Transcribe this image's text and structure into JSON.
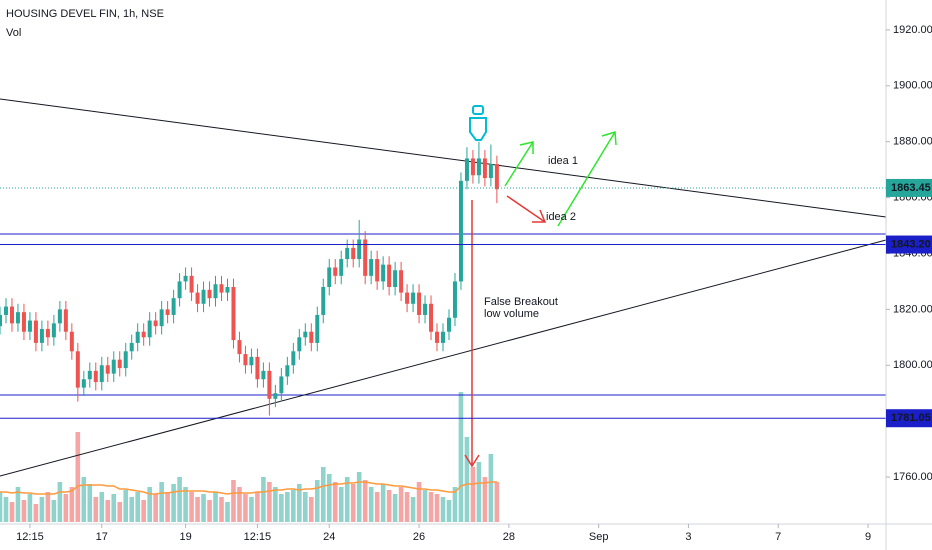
{
  "chart_data": {
    "type": "candlestick",
    "title": "HOUSING DEVEL FIN, 1h, NSE",
    "subtitle": "Vol",
    "annotations": [
      "idea 1",
      "idea 2",
      "False Breakout",
      "low volume"
    ],
    "xlim": [
      0,
      148
    ],
    "xticks": [
      {
        "value": 5,
        "label": "12:15"
      },
      {
        "value": 17,
        "label": "17"
      },
      {
        "value": 31,
        "label": "19"
      },
      {
        "value": 43,
        "label": "12:15"
      },
      {
        "value": 55,
        "label": "24"
      },
      {
        "value": 70,
        "label": "26"
      },
      {
        "value": 85,
        "label": "28"
      },
      {
        "value": 100,
        "label": "Sep"
      },
      {
        "value": 115,
        "label": "3"
      },
      {
        "value": 130,
        "label": "7"
      },
      {
        "value": 145,
        "label": "9"
      }
    ],
    "ylim": [
      1743.2,
      1930.7
    ],
    "yticks": [
      {
        "value": 1760,
        "label": "1760.00"
      },
      {
        "value": 1800,
        "label": "1800.00"
      },
      {
        "value": 1820,
        "label": "1820.00"
      },
      {
        "value": 1840,
        "label": "1840.00"
      },
      {
        "value": 1860,
        "label": "1860.00"
      },
      {
        "value": 1880,
        "label": "1880.00"
      },
      {
        "value": 1900,
        "label": "1900.00"
      },
      {
        "value": 1920,
        "label": "1920.00"
      }
    ],
    "up_color": "#26a69a",
    "down_color": "#ef5350",
    "vol_up_color": "#8fd3cc",
    "vol_down_color": "#f5a6a4",
    "ma_color": "#ff9a3c",
    "x": [
      0,
      1,
      2,
      3,
      4,
      5,
      6,
      7,
      8,
      9,
      10,
      11,
      12,
      13,
      14,
      15,
      16,
      17,
      18,
      19,
      20,
      21,
      22,
      23,
      24,
      25,
      26,
      27,
      28,
      29,
      30,
      31,
      32,
      33,
      34,
      35,
      36,
      37,
      38,
      39,
      40,
      41,
      42,
      43,
      44,
      45,
      46,
      47,
      48,
      49,
      50,
      51,
      52,
      53,
      54,
      55,
      56,
      57,
      58,
      59,
      60,
      61,
      62,
      63,
      64,
      65,
      66,
      67,
      68,
      69,
      70,
      71,
      72,
      73,
      74,
      75,
      76,
      77,
      78,
      79,
      80,
      81,
      82,
      83
    ],
    "open": [
      1814,
      1818,
      1821,
      1815,
      1819,
      1812,
      1816,
      1808,
      1813,
      1810,
      1815,
      1820,
      1812,
      1805,
      1792,
      1795,
      1798,
      1794,
      1800,
      1797,
      1802,
      1799,
      1805,
      1808,
      1812,
      1810,
      1816,
      1814,
      1820,
      1818,
      1824,
      1830,
      1832,
      1826,
      1822,
      1827,
      1824,
      1829,
      1826,
      1828,
      1809,
      1804,
      1800,
      1803,
      1795,
      1798,
      1788,
      1790,
      1796,
      1800,
      1805,
      1810,
      1812,
      1808,
      1818,
      1828,
      1835,
      1832,
      1838,
      1842,
      1838,
      1845,
      1832,
      1838,
      1830,
      1836,
      1828,
      1834,
      1826,
      1822,
      1826,
      1818,
      1822,
      1812,
      1808,
      1812,
      1817,
      1830,
      1866,
      1874,
      1868,
      1874,
      1867,
      1872
    ],
    "high": [
      1821,
      1824,
      1824,
      1822,
      1822,
      1819,
      1819,
      1816,
      1816,
      1818,
      1823,
      1823,
      1815,
      1808,
      1798,
      1801,
      1801,
      1803,
      1803,
      1805,
      1805,
      1808,
      1811,
      1815,
      1815,
      1819,
      1819,
      1823,
      1823,
      1827,
      1833,
      1835,
      1835,
      1829,
      1830,
      1830,
      1832,
      1832,
      1831,
      1831,
      1812,
      1807,
      1806,
      1806,
      1801,
      1801,
      1793,
      1799,
      1803,
      1808,
      1813,
      1815,
      1815,
      1821,
      1831,
      1838,
      1838,
      1841,
      1845,
      1845,
      1852,
      1848,
      1841,
      1841,
      1839,
      1839,
      1837,
      1837,
      1829,
      1829,
      1829,
      1825,
      1825,
      1815,
      1815,
      1820,
      1833,
      1869,
      1878,
      1877,
      1880,
      1877,
      1879,
      1875
    ],
    "low": [
      1811,
      1815,
      1812,
      1812,
      1809,
      1809,
      1805,
      1805,
      1807,
      1807,
      1812,
      1809,
      1802,
      1787,
      1789,
      1792,
      1791,
      1791,
      1794,
      1794,
      1796,
      1796,
      1802,
      1805,
      1807,
      1807,
      1811,
      1811,
      1815,
      1815,
      1821,
      1827,
      1823,
      1819,
      1819,
      1821,
      1821,
      1823,
      1823,
      1806,
      1801,
      1797,
      1797,
      1792,
      1792,
      1782,
      1785,
      1787,
      1793,
      1797,
      1802,
      1807,
      1805,
      1805,
      1815,
      1825,
      1829,
      1829,
      1835,
      1835,
      1835,
      1829,
      1829,
      1827,
      1827,
      1825,
      1825,
      1823,
      1819,
      1819,
      1815,
      1815,
      1809,
      1805,
      1805,
      1809,
      1814,
      1827,
      1863,
      1865,
      1865,
      1864,
      1864,
      1858
    ],
    "close": [
      1818,
      1821,
      1815,
      1819,
      1812,
      1816,
      1808,
      1813,
      1810,
      1815,
      1820,
      1812,
      1805,
      1792,
      1795,
      1798,
      1794,
      1800,
      1797,
      1802,
      1799,
      1805,
      1808,
      1812,
      1810,
      1816,
      1814,
      1820,
      1818,
      1824,
      1830,
      1832,
      1826,
      1822,
      1827,
      1824,
      1829,
      1826,
      1828,
      1809,
      1804,
      1800,
      1803,
      1795,
      1798,
      1788,
      1790,
      1796,
      1800,
      1805,
      1810,
      1812,
      1808,
      1818,
      1828,
      1835,
      1832,
      1838,
      1842,
      1838,
      1845,
      1832,
      1838,
      1830,
      1836,
      1828,
      1834,
      1826,
      1822,
      1826,
      1818,
      1822,
      1812,
      1808,
      1812,
      1817,
      1830,
      1866,
      1874,
      1868,
      1874,
      1867,
      1872,
      1863
    ],
    "volume": [
      30,
      25,
      20,
      35,
      22,
      28,
      18,
      25,
      30,
      22,
      40,
      28,
      35,
      90,
      45,
      38,
      25,
      30,
      22,
      28,
      20,
      32,
      25,
      30,
      22,
      35,
      28,
      40,
      30,
      38,
      45,
      35,
      30,
      25,
      28,
      22,
      30,
      25,
      20,
      42,
      35,
      28,
      25,
      30,
      45,
      40,
      35,
      28,
      30,
      32,
      38,
      30,
      25,
      42,
      55,
      48,
      40,
      35,
      45,
      38,
      50,
      42,
      35,
      30,
      38,
      32,
      28,
      35,
      30,
      25,
      40,
      32,
      30,
      28,
      25,
      22,
      35,
      130,
      85,
      55,
      60,
      45,
      68,
      40
    ],
    "volume_ma": [
      30,
      30,
      29,
      30,
      29,
      29,
      28,
      28,
      28,
      28,
      30,
      30,
      31,
      36,
      37,
      37,
      37,
      37,
      36,
      36,
      33,
      33,
      32,
      31,
      30,
      28,
      28,
      29,
      29,
      30,
      31,
      31,
      31,
      31,
      31,
      30,
      30,
      29,
      28,
      29,
      29,
      29,
      29,
      30,
      30,
      31,
      32,
      32,
      33,
      33,
      32,
      33,
      33,
      34,
      36,
      37,
      38,
      38,
      39,
      39,
      40,
      40,
      39,
      38,
      38,
      37,
      36,
      36,
      35,
      34,
      33,
      33,
      32,
      32,
      31,
      30,
      30,
      36,
      38,
      38,
      39,
      39,
      40,
      40
    ],
    "price_lines": [
      {
        "value": 1863.45,
        "color": "#26a69a",
        "style": "dotted"
      },
      {
        "value": 1843.2,
        "label": "1843.20",
        "color": "#1a1fc8",
        "style": "solid"
      },
      {
        "value": 1781.05,
        "color": "#1a1fc8",
        "style": "solid"
      }
    ]
  }
}
